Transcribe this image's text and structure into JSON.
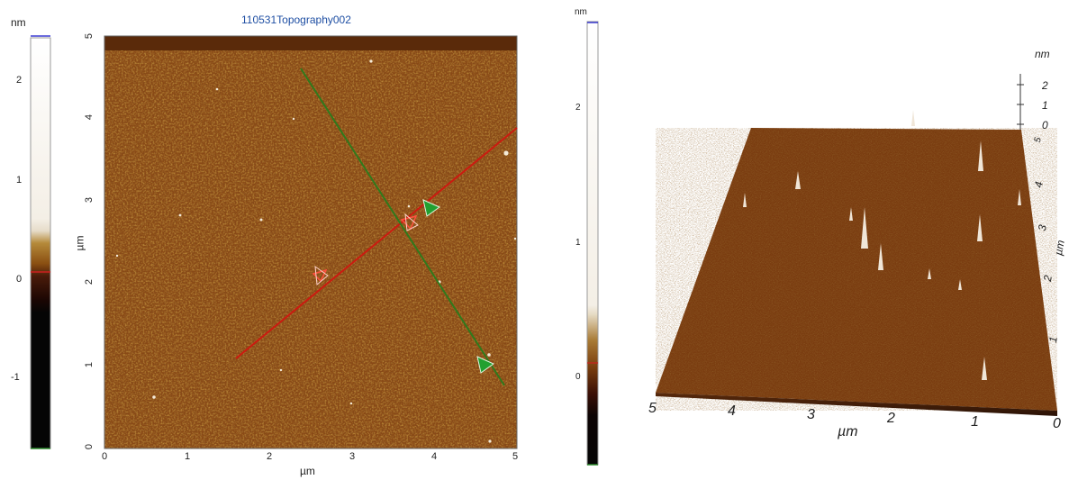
{
  "left_colorbar": {
    "unit": "nm",
    "ticks": [
      "2",
      "1",
      "0",
      "-1"
    ]
  },
  "image_2d": {
    "title": "110531Topography002",
    "x_axis": {
      "label": "µm",
      "ticks": [
        "0",
        "1",
        "2",
        "3",
        "4",
        "5"
      ]
    },
    "y_axis": {
      "label": "µm",
      "ticks": [
        "0",
        "1",
        "2",
        "3",
        "4",
        "5"
      ]
    },
    "red_line_color": "#cc1a10",
    "green_line_color": "#2f7a1c"
  },
  "mid_colorbar": {
    "unit": "nm",
    "ticks": [
      "2",
      "1",
      "0"
    ]
  },
  "view_3d": {
    "z_unit": "nm",
    "z_ticks": [
      "2",
      "1",
      "0"
    ],
    "x_label": "µm",
    "x_ticks": [
      "5",
      "4",
      "3",
      "2",
      "1",
      "0"
    ],
    "y_label": "µm",
    "y_ticks": [
      "5",
      "4",
      "3",
      "2",
      "1"
    ]
  }
}
